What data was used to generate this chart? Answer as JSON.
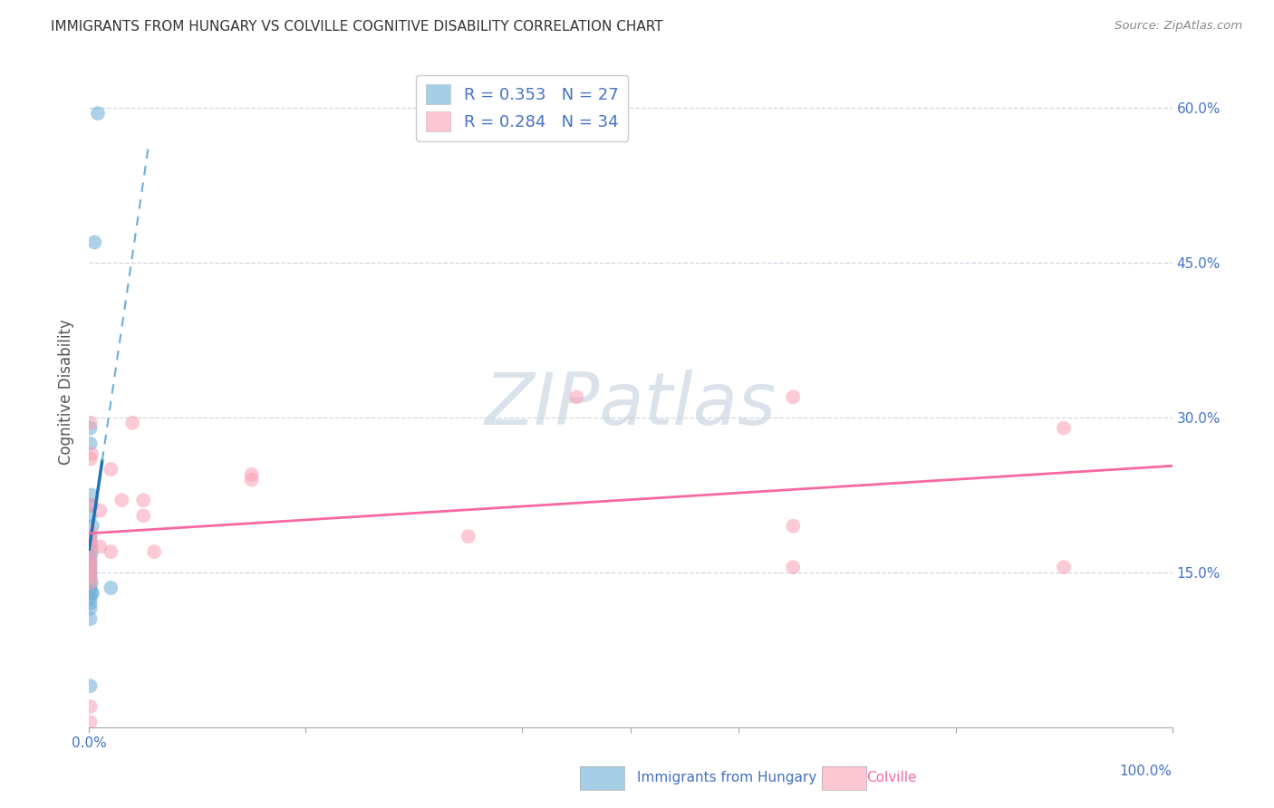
{
  "title": "IMMIGRANTS FROM HUNGARY VS COLVILLE COGNITIVE DISABILITY CORRELATION CHART",
  "source": "Source: ZipAtlas.com",
  "ylabel": "Cognitive Disability",
  "xlim": [
    0.0,
    1.0
  ],
  "ylim": [
    0.0,
    0.65
  ],
  "yticks": [
    0.0,
    0.15,
    0.3,
    0.45,
    0.6
  ],
  "ytick_labels": [
    "",
    "15.0%",
    "30.0%",
    "45.0%",
    "60.0%"
  ],
  "legend_r1": "R = 0.353",
  "legend_n1": "N = 27",
  "legend_r2": "R = 0.284",
  "legend_n2": "N = 34",
  "blue_color": "#6baed6",
  "pink_color": "#fa9fb5",
  "blue_line_color": "#2171b5",
  "pink_line_color": "#f768a1",
  "blue_scatter": [
    [
      0.008,
      0.595
    ],
    [
      0.005,
      0.47
    ],
    [
      0.001,
      0.29
    ],
    [
      0.001,
      0.275
    ],
    [
      0.002,
      0.225
    ],
    [
      0.002,
      0.215
    ],
    [
      0.001,
      0.205
    ],
    [
      0.003,
      0.195
    ],
    [
      0.001,
      0.185
    ],
    [
      0.001,
      0.18
    ],
    [
      0.001,
      0.175
    ],
    [
      0.002,
      0.17
    ],
    [
      0.001,
      0.165
    ],
    [
      0.001,
      0.16
    ],
    [
      0.001,
      0.155
    ],
    [
      0.001,
      0.15
    ],
    [
      0.001,
      0.145
    ],
    [
      0.002,
      0.14
    ],
    [
      0.001,
      0.135
    ],
    [
      0.003,
      0.13
    ],
    [
      0.002,
      0.13
    ],
    [
      0.001,
      0.125
    ],
    [
      0.001,
      0.12
    ],
    [
      0.001,
      0.115
    ],
    [
      0.001,
      0.105
    ],
    [
      0.02,
      0.135
    ],
    [
      0.001,
      0.04
    ]
  ],
  "pink_scatter": [
    [
      0.001,
      0.26
    ],
    [
      0.001,
      0.295
    ],
    [
      0.04,
      0.295
    ],
    [
      0.002,
      0.265
    ],
    [
      0.02,
      0.25
    ],
    [
      0.05,
      0.22
    ],
    [
      0.002,
      0.215
    ],
    [
      0.01,
      0.21
    ],
    [
      0.05,
      0.205
    ],
    [
      0.03,
      0.22
    ],
    [
      0.15,
      0.24
    ],
    [
      0.15,
      0.245
    ],
    [
      0.45,
      0.32
    ],
    [
      0.001,
      0.19
    ],
    [
      0.001,
      0.185
    ],
    [
      0.001,
      0.18
    ],
    [
      0.002,
      0.175
    ],
    [
      0.01,
      0.175
    ],
    [
      0.02,
      0.17
    ],
    [
      0.06,
      0.17
    ],
    [
      0.35,
      0.185
    ],
    [
      0.001,
      0.165
    ],
    [
      0.001,
      0.16
    ],
    [
      0.001,
      0.155
    ],
    [
      0.001,
      0.15
    ],
    [
      0.001,
      0.145
    ],
    [
      0.001,
      0.14
    ],
    [
      0.001,
      0.02
    ],
    [
      0.001,
      0.005
    ],
    [
      0.65,
      0.195
    ],
    [
      0.65,
      0.32
    ],
    [
      0.65,
      0.155
    ],
    [
      0.9,
      0.29
    ],
    [
      0.9,
      0.155
    ]
  ],
  "background_color": "#ffffff",
  "grid_color": "#d0d8e4",
  "watermark_color": "#ccd6e0",
  "tick_color": "#4472c4",
  "title_color": "#333333",
  "source_color": "#888888",
  "ylabel_color": "#555555"
}
